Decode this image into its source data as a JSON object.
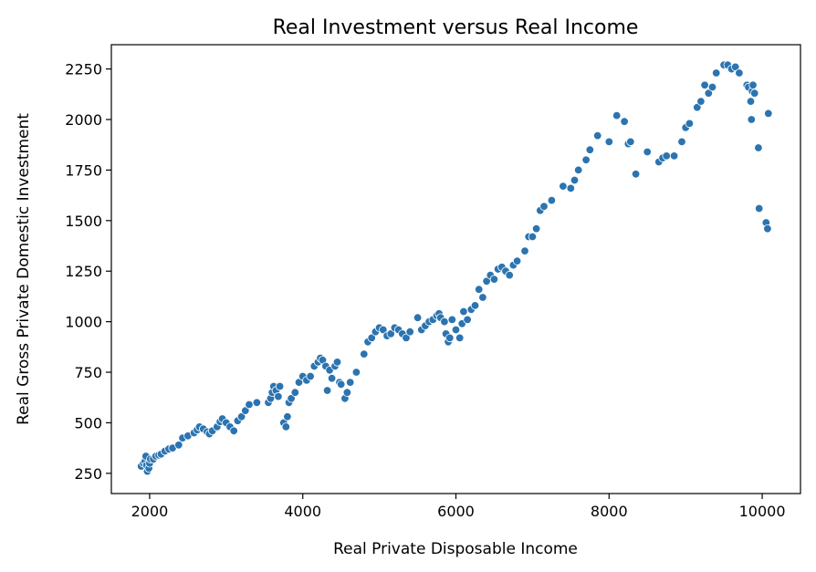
{
  "chart_data": {
    "type": "scatter",
    "title": "Real Investment versus Real Income",
    "xlabel": "Real Private Disposable Income",
    "ylabel": "Real Gross Private Domestic Investment",
    "xlim": [
      1500,
      10500
    ],
    "ylim": [
      150,
      2370
    ],
    "xticks": [
      2000,
      4000,
      6000,
      8000,
      10000
    ],
    "yticks": [
      250,
      500,
      750,
      1000,
      1250,
      1500,
      1750,
      2000,
      2250
    ],
    "grid": false,
    "legend": "none",
    "marker_color": "#2b74b0",
    "series": [
      {
        "points": [
          [
            1890,
            285
          ],
          [
            1920,
            300
          ],
          [
            1940,
            310
          ],
          [
            1950,
            335
          ],
          [
            1960,
            290
          ],
          [
            1970,
            260
          ],
          [
            1990,
            275
          ],
          [
            2000,
            300
          ],
          [
            2010,
            320
          ],
          [
            2050,
            320
          ],
          [
            2080,
            335
          ],
          [
            2120,
            340
          ],
          [
            2150,
            345
          ],
          [
            2200,
            360
          ],
          [
            2250,
            370
          ],
          [
            2300,
            375
          ],
          [
            2380,
            390
          ],
          [
            2430,
            425
          ],
          [
            2500,
            435
          ],
          [
            2580,
            450
          ],
          [
            2620,
            465
          ],
          [
            2650,
            480
          ],
          [
            2700,
            470
          ],
          [
            2750,
            455
          ],
          [
            2780,
            445
          ],
          [
            2820,
            460
          ],
          [
            2880,
            480
          ],
          [
            2920,
            505
          ],
          [
            2950,
            520
          ],
          [
            3000,
            500
          ],
          [
            3050,
            480
          ],
          [
            3100,
            460
          ],
          [
            3150,
            510
          ],
          [
            3200,
            530
          ],
          [
            3250,
            560
          ],
          [
            3300,
            590
          ],
          [
            3400,
            600
          ],
          [
            3550,
            600
          ],
          [
            3580,
            620
          ],
          [
            3600,
            650
          ],
          [
            3620,
            680
          ],
          [
            3650,
            660
          ],
          [
            3680,
            630
          ],
          [
            3700,
            680
          ],
          [
            3750,
            500
          ],
          [
            3780,
            480
          ],
          [
            3800,
            530
          ],
          [
            3820,
            600
          ],
          [
            3850,
            620
          ],
          [
            3900,
            650
          ],
          [
            3950,
            700
          ],
          [
            4000,
            730
          ],
          [
            4050,
            710
          ],
          [
            4100,
            730
          ],
          [
            4150,
            780
          ],
          [
            4200,
            800
          ],
          [
            4230,
            820
          ],
          [
            4260,
            810
          ],
          [
            4300,
            780
          ],
          [
            4320,
            660
          ],
          [
            4350,
            760
          ],
          [
            4380,
            720
          ],
          [
            4420,
            780
          ],
          [
            4450,
            800
          ],
          [
            4480,
            700
          ],
          [
            4500,
            690
          ],
          [
            4550,
            620
          ],
          [
            4580,
            650
          ],
          [
            4620,
            700
          ],
          [
            4700,
            750
          ],
          [
            4800,
            840
          ],
          [
            4850,
            900
          ],
          [
            4900,
            920
          ],
          [
            4950,
            950
          ],
          [
            5000,
            970
          ],
          [
            5050,
            960
          ],
          [
            5100,
            930
          ],
          [
            5150,
            940
          ],
          [
            5200,
            970
          ],
          [
            5250,
            960
          ],
          [
            5300,
            940
          ],
          [
            5350,
            920
          ],
          [
            5400,
            950
          ],
          [
            5500,
            1020
          ],
          [
            5550,
            960
          ],
          [
            5600,
            980
          ],
          [
            5650,
            1000
          ],
          [
            5700,
            1010
          ],
          [
            5750,
            1030
          ],
          [
            5780,
            1040
          ],
          [
            5800,
            1020
          ],
          [
            5850,
            1000
          ],
          [
            5870,
            940
          ],
          [
            5900,
            900
          ],
          [
            5920,
            920
          ],
          [
            5950,
            1010
          ],
          [
            6000,
            960
          ],
          [
            6050,
            920
          ],
          [
            6080,
            990
          ],
          [
            6100,
            1050
          ],
          [
            6150,
            1010
          ],
          [
            6200,
            1060
          ],
          [
            6250,
            1080
          ],
          [
            6300,
            1160
          ],
          [
            6350,
            1120
          ],
          [
            6400,
            1200
          ],
          [
            6450,
            1230
          ],
          [
            6500,
            1210
          ],
          [
            6550,
            1260
          ],
          [
            6600,
            1270
          ],
          [
            6650,
            1250
          ],
          [
            6700,
            1230
          ],
          [
            6750,
            1280
          ],
          [
            6800,
            1300
          ],
          [
            6900,
            1350
          ],
          [
            6950,
            1420
          ],
          [
            7000,
            1420
          ],
          [
            7050,
            1460
          ],
          [
            7100,
            1550
          ],
          [
            7150,
            1570
          ],
          [
            7250,
            1600
          ],
          [
            7400,
            1670
          ],
          [
            7500,
            1660
          ],
          [
            7550,
            1700
          ],
          [
            7600,
            1750
          ],
          [
            7700,
            1800
          ],
          [
            7750,
            1850
          ],
          [
            7850,
            1920
          ],
          [
            8000,
            1890
          ],
          [
            8100,
            2020
          ],
          [
            8200,
            1990
          ],
          [
            8250,
            1880
          ],
          [
            8280,
            1890
          ],
          [
            8350,
            1730
          ],
          [
            8500,
            1840
          ],
          [
            8650,
            1790
          ],
          [
            8700,
            1810
          ],
          [
            8750,
            1820
          ],
          [
            8850,
            1820
          ],
          [
            8950,
            1890
          ],
          [
            9000,
            1960
          ],
          [
            9050,
            1980
          ],
          [
            9150,
            2060
          ],
          [
            9200,
            2090
          ],
          [
            9250,
            2170
          ],
          [
            9300,
            2130
          ],
          [
            9350,
            2160
          ],
          [
            9400,
            2230
          ],
          [
            9500,
            2270
          ],
          [
            9550,
            2270
          ],
          [
            9600,
            2250
          ],
          [
            9650,
            2260
          ],
          [
            9700,
            2230
          ],
          [
            9800,
            2170
          ],
          [
            9820,
            2160
          ],
          [
            9850,
            2090
          ],
          [
            9860,
            2000
          ],
          [
            9870,
            2140
          ],
          [
            9880,
            2170
          ],
          [
            9900,
            2130
          ],
          [
            9950,
            1860
          ],
          [
            9960,
            1560
          ],
          [
            10050,
            1490
          ],
          [
            10070,
            1460
          ],
          [
            10080,
            2030
          ]
        ]
      }
    ]
  }
}
